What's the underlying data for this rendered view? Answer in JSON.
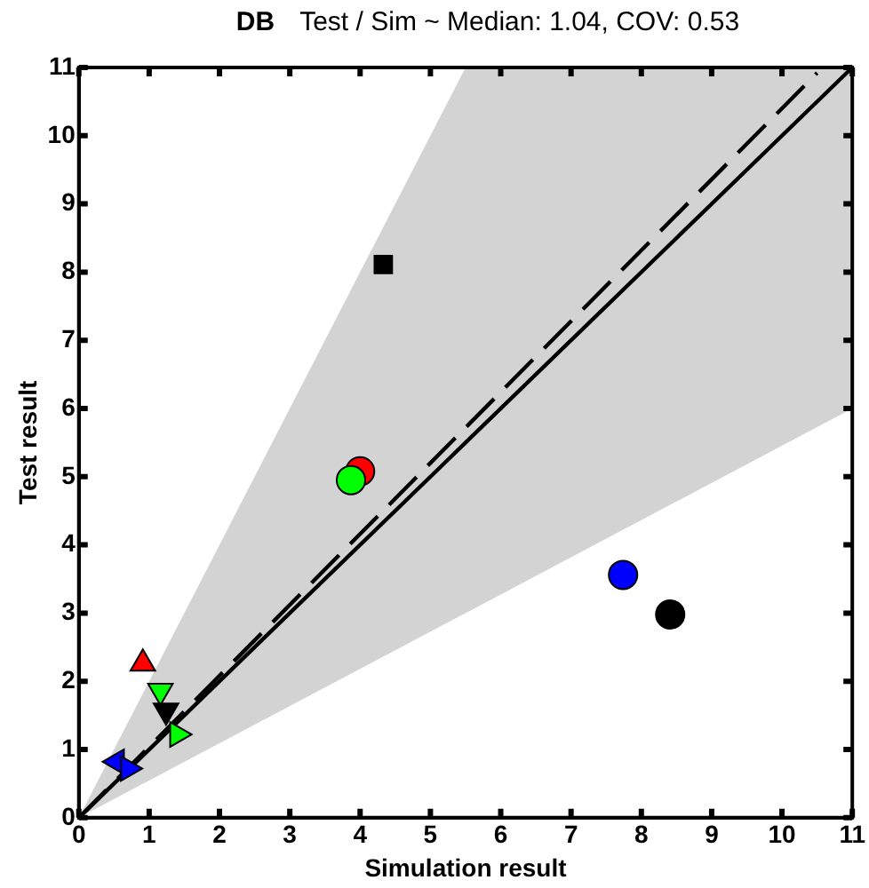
{
  "chart_data": {
    "type": "scatter",
    "title": "DB",
    "subtitle": "Test / Sim ~ Median: 1.04, COV: 0.53",
    "xlabel": "Simulation result",
    "ylabel": "Test result",
    "xlim": [
      0,
      11
    ],
    "ylim": [
      0,
      11
    ],
    "xticks": [
      0,
      1,
      2,
      3,
      4,
      5,
      6,
      7,
      8,
      9,
      10,
      11
    ],
    "yticks": [
      0,
      1,
      2,
      3,
      4,
      5,
      6,
      7,
      8,
      9,
      10,
      11
    ],
    "grid": false,
    "legend": false,
    "series": [
      {
        "type": "line",
        "color": "#000000",
        "marker": "none",
        "line_style": "solid",
        "x": [
          0,
          5.5,
          11
        ],
        "values": [
          0,
          5.5,
          11
        ],
        "lower": [
          0,
          3,
          6
        ],
        "upper": [
          0,
          11,
          11
        ]
      },
      {
        "type": "line",
        "color": "#000000",
        "marker": "none",
        "line_style": "dashed",
        "x": [
          0,
          10.5
        ],
        "values": [
          0,
          10.92
        ]
      },
      {
        "color": "#000000",
        "marker": "square",
        "x": [
          4.33
        ],
        "values": [
          8.11
        ]
      },
      {
        "color": "#ff0000",
        "marker": "circle",
        "x": [
          4.0
        ],
        "values": [
          5.08
        ]
      },
      {
        "color": "#00ff00",
        "marker": "circle",
        "x": [
          3.87
        ],
        "values": [
          4.95
        ]
      },
      {
        "color": "#0000ff",
        "marker": "circle",
        "x": [
          7.74
        ],
        "values": [
          3.56
        ]
      },
      {
        "color": "#000000",
        "marker": "circle",
        "x": [
          8.41
        ],
        "values": [
          2.98
        ]
      },
      {
        "color": "#ff0000",
        "marker": "triangle",
        "x": [
          0.91
        ],
        "values": [
          2.26
        ]
      },
      {
        "color": "#00ff00",
        "marker": "triangle-down",
        "x": [
          1.16
        ],
        "values": [
          1.86
        ]
      },
      {
        "color": "#000000",
        "marker": "triangle-down",
        "x": [
          1.24
        ],
        "values": [
          1.57
        ]
      },
      {
        "color": "#00ff00",
        "marker": "triangle-right",
        "x": [
          1.4
        ],
        "values": [
          1.22
        ]
      },
      {
        "color": "#0000ff",
        "marker": "triangle-left",
        "x": [
          0.54
        ],
        "values": [
          0.82
        ]
      },
      {
        "color": "#0000ff",
        "marker": "triangle-right",
        "x": [
          0.7
        ],
        "values": [
          0.72
        ]
      }
    ]
  }
}
